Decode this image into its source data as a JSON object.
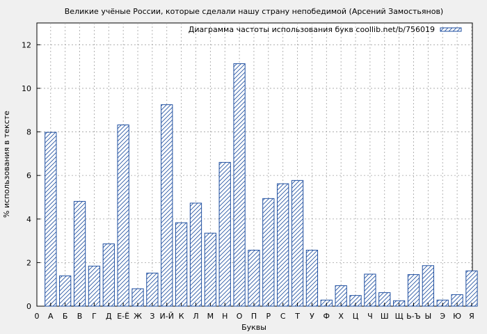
{
  "chart_data": {
    "type": "bar",
    "title": "Великие учёные России, которые сделали нашу страну непобедимой (Арсений Замостьянов)",
    "xlabel": "Буквы",
    "ylabel": "% использования в тексте",
    "ylim": [
      0,
      13
    ],
    "yticks": [
      0,
      2,
      4,
      6,
      8,
      10,
      12
    ],
    "grid": true,
    "legend_position": "top-right",
    "x_origin_label": "0",
    "categories": [
      "А",
      "Б",
      "В",
      "Г",
      "Д",
      "Е-Ё",
      "Ж",
      "З",
      "И-Й",
      "К",
      "Л",
      "М",
      "Н",
      "О",
      "П",
      "Р",
      "С",
      "Т",
      "У",
      "Ф",
      "Х",
      "Ц",
      "Ч",
      "Ш",
      "Щ",
      "Ь-Ъ",
      "Ы",
      "Э",
      "Ю",
      "Я"
    ],
    "series": [
      {
        "name": "Диаграмма частоты использования букв coollib.net/b/756019",
        "values": [
          7.98,
          1.39,
          4.81,
          1.84,
          2.86,
          8.32,
          0.8,
          1.52,
          9.25,
          3.83,
          4.73,
          3.35,
          6.6,
          11.13,
          2.57,
          4.94,
          5.62,
          5.77,
          2.57,
          0.28,
          0.94,
          0.49,
          1.47,
          0.62,
          0.25,
          1.45,
          1.86,
          0.28,
          0.53,
          1.62
        ]
      }
    ],
    "colors": {
      "bar_stroke": "#1f4fa0",
      "background": "#f0f0f0",
      "plot_bg": "#ffffff",
      "grid": "#a0a0a0"
    }
  }
}
